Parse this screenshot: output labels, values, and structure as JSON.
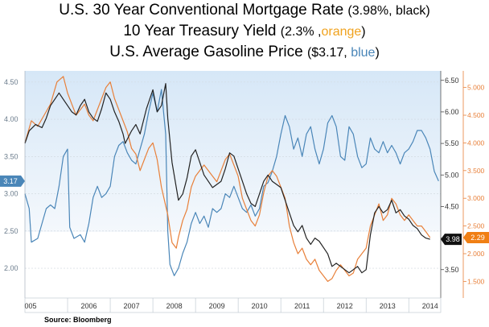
{
  "titles": {
    "line1_main": "U.S. 30 Year Conventional Mortgage Rate ",
    "line1_paren_value": "(3.98%, black)",
    "line2_main": "10 Year Treasury Yield ",
    "line2_paren_open": "(2.3% ,",
    "line2_color_word": "orange",
    "line2_paren_close": ")",
    "line3_main": "U.S. Average Gasoline Price ",
    "line3_paren_open": "($3.17, ",
    "line3_color_word": "blue",
    "line3_paren_close": ")"
  },
  "source": "Source:  Bloomberg",
  "colors": {
    "mortgage": "#222222",
    "treasury": "#e8803a",
    "gasoline": "#4a86b8",
    "band_top": "#d6e7f7",
    "band_bottom": "#f4f8fc"
  },
  "chart_data": {
    "type": "line",
    "x_axis": {
      "range": [
        2005.0,
        2014.75
      ],
      "tick_labels": [
        "005",
        "2006",
        "2007",
        "2008",
        "2009",
        "2010",
        "2011",
        "2012",
        "2013",
        "2014"
      ]
    },
    "y_left": {
      "range": [
        1.6,
        4.65
      ],
      "ticks": [
        "4.50",
        "4.00",
        "3.50",
        "3.00",
        "2.50",
        "2.00"
      ],
      "marker": "3.17"
    },
    "y_right_black": {
      "range": [
        3.05,
        6.65
      ],
      "ticks": [
        "6.50",
        "6.00",
        "5.50",
        "5.00",
        "4.50",
        "4.00",
        "3.50"
      ],
      "marker": "3.98"
    },
    "y_right_orange": {
      "range": [
        1.2,
        5.3
      ],
      "ticks": [
        "5.000",
        "4.500",
        "4.000",
        "3.500",
        "3.000",
        "2.500",
        "2.000",
        "1.500"
      ],
      "marker": "2.29"
    },
    "series": [
      {
        "key": "mortgage",
        "axis": "y_right_black",
        "points": [
          [
            2005.0,
            5.5
          ],
          [
            2005.1,
            5.7
          ],
          [
            2005.25,
            5.8
          ],
          [
            2005.4,
            5.75
          ],
          [
            2005.5,
            5.9
          ],
          [
            2005.6,
            6.1
          ],
          [
            2005.7,
            6.2
          ],
          [
            2005.8,
            6.3
          ],
          [
            2005.9,
            6.2
          ],
          [
            2006.0,
            6.1
          ],
          [
            2006.1,
            6.0
          ],
          [
            2006.2,
            5.95
          ],
          [
            2006.3,
            6.1
          ],
          [
            2006.4,
            6.2
          ],
          [
            2006.5,
            6.0
          ],
          [
            2006.6,
            5.9
          ],
          [
            2006.7,
            5.85
          ],
          [
            2006.8,
            6.05
          ],
          [
            2006.9,
            6.3
          ],
          [
            2007.0,
            6.2
          ],
          [
            2007.1,
            6.0
          ],
          [
            2007.2,
            5.85
          ],
          [
            2007.3,
            5.65
          ],
          [
            2007.35,
            5.5
          ],
          [
            2007.5,
            5.7
          ],
          [
            2007.6,
            5.8
          ],
          [
            2007.7,
            5.65
          ],
          [
            2007.85,
            6.05
          ],
          [
            2008.0,
            6.35
          ],
          [
            2008.1,
            6.0
          ],
          [
            2008.2,
            6.1
          ],
          [
            2008.3,
            6.45
          ],
          [
            2008.35,
            5.9
          ],
          [
            2008.45,
            5.2
          ],
          [
            2008.55,
            4.8
          ],
          [
            2008.6,
            4.6
          ],
          [
            2008.7,
            4.7
          ],
          [
            2008.8,
            4.95
          ],
          [
            2008.9,
            5.3
          ],
          [
            2009.0,
            5.4
          ],
          [
            2009.1,
            5.2
          ],
          [
            2009.2,
            5.0
          ],
          [
            2009.3,
            4.9
          ],
          [
            2009.4,
            4.8
          ],
          [
            2009.5,
            4.85
          ],
          [
            2009.6,
            4.9
          ],
          [
            2009.7,
            5.1
          ],
          [
            2009.8,
            5.35
          ],
          [
            2009.9,
            5.3
          ],
          [
            2010.0,
            5.1
          ],
          [
            2010.1,
            4.9
          ],
          [
            2010.2,
            4.7
          ],
          [
            2010.3,
            4.55
          ],
          [
            2010.4,
            4.5
          ],
          [
            2010.5,
            4.7
          ],
          [
            2010.6,
            4.9
          ],
          [
            2010.7,
            5.0
          ],
          [
            2010.8,
            4.9
          ],
          [
            2010.9,
            4.85
          ],
          [
            2011.0,
            4.8
          ],
          [
            2011.1,
            4.6
          ],
          [
            2011.2,
            4.4
          ],
          [
            2011.3,
            4.2
          ],
          [
            2011.4,
            4.1
          ],
          [
            2011.5,
            4.2
          ],
          [
            2011.6,
            4.0
          ],
          [
            2011.7,
            3.9
          ],
          [
            2011.8,
            4.0
          ],
          [
            2011.9,
            3.95
          ],
          [
            2012.0,
            3.85
          ],
          [
            2012.1,
            3.75
          ],
          [
            2012.2,
            3.55
          ],
          [
            2012.3,
            3.6
          ],
          [
            2012.4,
            3.55
          ],
          [
            2012.5,
            3.5
          ],
          [
            2012.6,
            3.45
          ],
          [
            2012.7,
            3.5
          ],
          [
            2012.8,
            3.55
          ],
          [
            2012.9,
            3.45
          ],
          [
            2013.0,
            3.5
          ],
          [
            2013.1,
            4.05
          ],
          [
            2013.2,
            4.4
          ],
          [
            2013.3,
            4.5
          ],
          [
            2013.4,
            4.4
          ],
          [
            2013.5,
            4.45
          ],
          [
            2013.6,
            4.6
          ],
          [
            2013.7,
            4.4
          ],
          [
            2013.8,
            4.45
          ],
          [
            2013.9,
            4.35
          ],
          [
            2014.0,
            4.3
          ],
          [
            2014.1,
            4.2
          ],
          [
            2014.2,
            4.15
          ],
          [
            2014.3,
            4.05
          ],
          [
            2014.4,
            4.0
          ],
          [
            2014.5,
            3.98
          ]
        ]
      },
      {
        "key": "treasury",
        "axis": "y_right_orange",
        "points": [
          [
            2005.0,
            4.0
          ],
          [
            2005.15,
            4.4
          ],
          [
            2005.3,
            4.3
          ],
          [
            2005.45,
            4.5
          ],
          [
            2005.6,
            4.7
          ],
          [
            2005.75,
            5.1
          ],
          [
            2005.9,
            5.2
          ],
          [
            2006.0,
            4.9
          ],
          [
            2006.1,
            4.7
          ],
          [
            2006.2,
            4.5
          ],
          [
            2006.3,
            4.6
          ],
          [
            2006.4,
            4.7
          ],
          [
            2006.5,
            4.5
          ],
          [
            2006.6,
            4.4
          ],
          [
            2006.7,
            4.6
          ],
          [
            2006.8,
            4.8
          ],
          [
            2006.9,
            5.0
          ],
          [
            2007.0,
            5.1
          ],
          [
            2007.1,
            4.8
          ],
          [
            2007.2,
            4.6
          ],
          [
            2007.3,
            4.4
          ],
          [
            2007.4,
            4.2
          ],
          [
            2007.5,
            3.9
          ],
          [
            2007.6,
            3.8
          ],
          [
            2007.7,
            3.5
          ],
          [
            2007.8,
            3.7
          ],
          [
            2007.9,
            3.9
          ],
          [
            2008.0,
            4.0
          ],
          [
            2008.1,
            3.7
          ],
          [
            2008.2,
            3.2
          ],
          [
            2008.35,
            2.7
          ],
          [
            2008.45,
            2.2
          ],
          [
            2008.55,
            2.1
          ],
          [
            2008.6,
            2.3
          ],
          [
            2008.7,
            2.6
          ],
          [
            2008.8,
            2.8
          ],
          [
            2008.9,
            3.2
          ],
          [
            2009.0,
            3.4
          ],
          [
            2009.1,
            3.5
          ],
          [
            2009.2,
            3.6
          ],
          [
            2009.3,
            3.5
          ],
          [
            2009.4,
            3.4
          ],
          [
            2009.5,
            3.3
          ],
          [
            2009.6,
            3.5
          ],
          [
            2009.7,
            3.7
          ],
          [
            2009.8,
            3.8
          ],
          [
            2009.9,
            3.6
          ],
          [
            2010.0,
            3.4
          ],
          [
            2010.1,
            3.0
          ],
          [
            2010.2,
            2.8
          ],
          [
            2010.3,
            2.6
          ],
          [
            2010.4,
            2.5
          ],
          [
            2010.5,
            2.7
          ],
          [
            2010.6,
            3.1
          ],
          [
            2010.7,
            3.4
          ],
          [
            2010.8,
            3.5
          ],
          [
            2010.9,
            3.4
          ],
          [
            2011.0,
            3.2
          ],
          [
            2011.1,
            3.0
          ],
          [
            2011.2,
            2.5
          ],
          [
            2011.3,
            2.2
          ],
          [
            2011.4,
            2.0
          ],
          [
            2011.5,
            2.1
          ],
          [
            2011.6,
            1.9
          ],
          [
            2011.7,
            1.8
          ],
          [
            2011.8,
            1.9
          ],
          [
            2011.9,
            1.7
          ],
          [
            2012.0,
            1.6
          ],
          [
            2012.1,
            1.5
          ],
          [
            2012.2,
            1.55
          ],
          [
            2012.3,
            1.7
          ],
          [
            2012.4,
            1.8
          ],
          [
            2012.5,
            1.7
          ],
          [
            2012.6,
            1.6
          ],
          [
            2012.7,
            1.65
          ],
          [
            2012.8,
            1.9
          ],
          [
            2012.9,
            2.0
          ],
          [
            2013.0,
            2.1
          ],
          [
            2013.1,
            2.5
          ],
          [
            2013.2,
            2.7
          ],
          [
            2013.3,
            2.9
          ],
          [
            2013.4,
            2.6
          ],
          [
            2013.5,
            2.7
          ],
          [
            2013.6,
            3.0
          ],
          [
            2013.7,
            2.9
          ],
          [
            2013.8,
            2.7
          ],
          [
            2013.9,
            2.6
          ],
          [
            2014.0,
            2.7
          ],
          [
            2014.1,
            2.6
          ],
          [
            2014.2,
            2.5
          ],
          [
            2014.3,
            2.5
          ],
          [
            2014.4,
            2.4
          ],
          [
            2014.5,
            2.29
          ]
        ]
      },
      {
        "key": "gasoline",
        "axis": "y_left",
        "points": [
          [
            2005.0,
            3.0
          ],
          [
            2005.1,
            2.8
          ],
          [
            2005.15,
            2.35
          ],
          [
            2005.3,
            2.4
          ],
          [
            2005.4,
            2.6
          ],
          [
            2005.5,
            2.8
          ],
          [
            2005.6,
            2.85
          ],
          [
            2005.7,
            2.8
          ],
          [
            2005.8,
            3.1
          ],
          [
            2005.9,
            3.5
          ],
          [
            2006.0,
            3.6
          ],
          [
            2006.05,
            2.55
          ],
          [
            2006.15,
            2.4
          ],
          [
            2006.3,
            2.45
          ],
          [
            2006.4,
            2.35
          ],
          [
            2006.5,
            2.6
          ],
          [
            2006.6,
            2.95
          ],
          [
            2006.7,
            3.1
          ],
          [
            2006.8,
            2.95
          ],
          [
            2006.9,
            3.0
          ],
          [
            2007.0,
            3.1
          ],
          [
            2007.1,
            3.5
          ],
          [
            2007.2,
            3.65
          ],
          [
            2007.3,
            3.7
          ],
          [
            2007.4,
            3.55
          ],
          [
            2007.5,
            3.45
          ],
          [
            2007.6,
            3.4
          ],
          [
            2007.7,
            3.6
          ],
          [
            2007.8,
            3.8
          ],
          [
            2007.9,
            4.1
          ],
          [
            2008.0,
            4.35
          ],
          [
            2008.1,
            4.1
          ],
          [
            2008.2,
            4.4
          ],
          [
            2008.3,
            3.8
          ],
          [
            2008.35,
            2.5
          ],
          [
            2008.4,
            2.05
          ],
          [
            2008.5,
            1.9
          ],
          [
            2008.6,
            2.0
          ],
          [
            2008.7,
            2.2
          ],
          [
            2008.8,
            2.35
          ],
          [
            2008.9,
            2.6
          ],
          [
            2009.0,
            2.75
          ],
          [
            2009.1,
            2.6
          ],
          [
            2009.2,
            2.7
          ],
          [
            2009.3,
            2.55
          ],
          [
            2009.4,
            2.8
          ],
          [
            2009.5,
            2.75
          ],
          [
            2009.6,
            2.8
          ],
          [
            2009.7,
            3.0
          ],
          [
            2009.8,
            2.95
          ],
          [
            2009.9,
            3.1
          ],
          [
            2010.0,
            2.95
          ],
          [
            2010.1,
            2.8
          ],
          [
            2010.2,
            2.75
          ],
          [
            2010.3,
            2.85
          ],
          [
            2010.4,
            2.7
          ],
          [
            2010.5,
            2.8
          ],
          [
            2010.6,
            3.1
          ],
          [
            2010.7,
            3.15
          ],
          [
            2010.8,
            3.3
          ],
          [
            2010.9,
            3.5
          ],
          [
            2011.0,
            3.8
          ],
          [
            2011.1,
            4.05
          ],
          [
            2011.2,
            3.9
          ],
          [
            2011.3,
            3.6
          ],
          [
            2011.4,
            3.75
          ],
          [
            2011.5,
            3.5
          ],
          [
            2011.6,
            3.8
          ],
          [
            2011.7,
            3.9
          ],
          [
            2011.8,
            3.6
          ],
          [
            2011.9,
            3.4
          ],
          [
            2012.0,
            3.6
          ],
          [
            2012.1,
            3.95
          ],
          [
            2012.2,
            4.05
          ],
          [
            2012.3,
            3.9
          ],
          [
            2012.4,
            3.5
          ],
          [
            2012.5,
            3.45
          ],
          [
            2012.6,
            3.9
          ],
          [
            2012.7,
            3.8
          ],
          [
            2012.8,
            3.5
          ],
          [
            2012.9,
            3.35
          ],
          [
            2013.0,
            3.4
          ],
          [
            2013.1,
            3.75
          ],
          [
            2013.2,
            3.6
          ],
          [
            2013.3,
            3.55
          ],
          [
            2013.4,
            3.7
          ],
          [
            2013.5,
            3.55
          ],
          [
            2013.6,
            3.65
          ],
          [
            2013.7,
            3.55
          ],
          [
            2013.8,
            3.4
          ],
          [
            2013.9,
            3.55
          ],
          [
            2014.0,
            3.6
          ],
          [
            2014.1,
            3.7
          ],
          [
            2014.2,
            3.85
          ],
          [
            2014.3,
            3.85
          ],
          [
            2014.4,
            3.75
          ],
          [
            2014.5,
            3.6
          ],
          [
            2014.6,
            3.3
          ],
          [
            2014.7,
            3.17
          ]
        ]
      }
    ]
  }
}
